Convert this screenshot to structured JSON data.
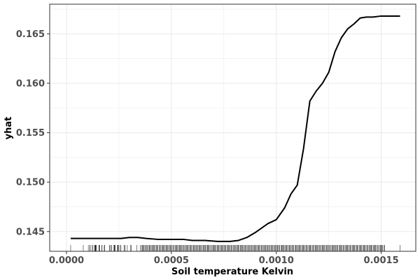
{
  "chart_data": {
    "type": "line",
    "xlabel": "Soil temperature Kelvin",
    "ylabel": "yhat",
    "xlim": [
      -8e-05,
      0.001665
    ],
    "ylim": [
      0.143,
      0.168
    ],
    "x_ticks": [
      0.0,
      0.0005,
      0.001,
      0.0015
    ],
    "x_tick_labels": [
      "0.0000",
      "0.0005",
      "0.0010",
      "0.0015"
    ],
    "y_ticks": [
      0.145,
      0.15,
      0.155,
      0.16,
      0.165
    ],
    "y_tick_labels": [
      "0.145",
      "0.150",
      "0.155",
      "0.160",
      "0.165"
    ],
    "grid": true,
    "rug": true,
    "colors": {
      "line": "#000000",
      "grid": "#ebebeb",
      "panel_border": "#333333",
      "rug": "#000000"
    },
    "series": [
      {
        "x": [
          2e-05,
          8e-05,
          0.00014,
          0.0002,
          0.00026,
          0.0003,
          0.00034,
          0.00038,
          0.00044,
          0.0005,
          0.00056,
          0.0006,
          0.00066,
          0.00072,
          0.00078,
          0.00082,
          0.00086,
          0.0009,
          0.00096,
          0.001,
          0.00104,
          0.00107,
          0.0011,
          0.00113,
          0.00116,
          0.00119,
          0.00122,
          0.00125,
          0.00128,
          0.00131,
          0.00134,
          0.00137,
          0.0014,
          0.00143,
          0.00146,
          0.0015,
          0.00154,
          0.00159
        ],
        "y": [
          0.1443,
          0.1443,
          0.1443,
          0.1443,
          0.1443,
          0.1444,
          0.1444,
          0.1443,
          0.1442,
          0.1442,
          0.1442,
          0.1441,
          0.1441,
          0.144,
          0.144,
          0.1441,
          0.1444,
          0.1449,
          0.1458,
          0.1462,
          0.1474,
          0.1488,
          0.1497,
          0.1534,
          0.1582,
          0.1592,
          0.16,
          0.1611,
          0.1632,
          0.1646,
          0.1655,
          0.166,
          0.1666,
          0.1667,
          0.1667,
          0.1668,
          0.1668,
          0.1668
        ]
      }
    ]
  }
}
